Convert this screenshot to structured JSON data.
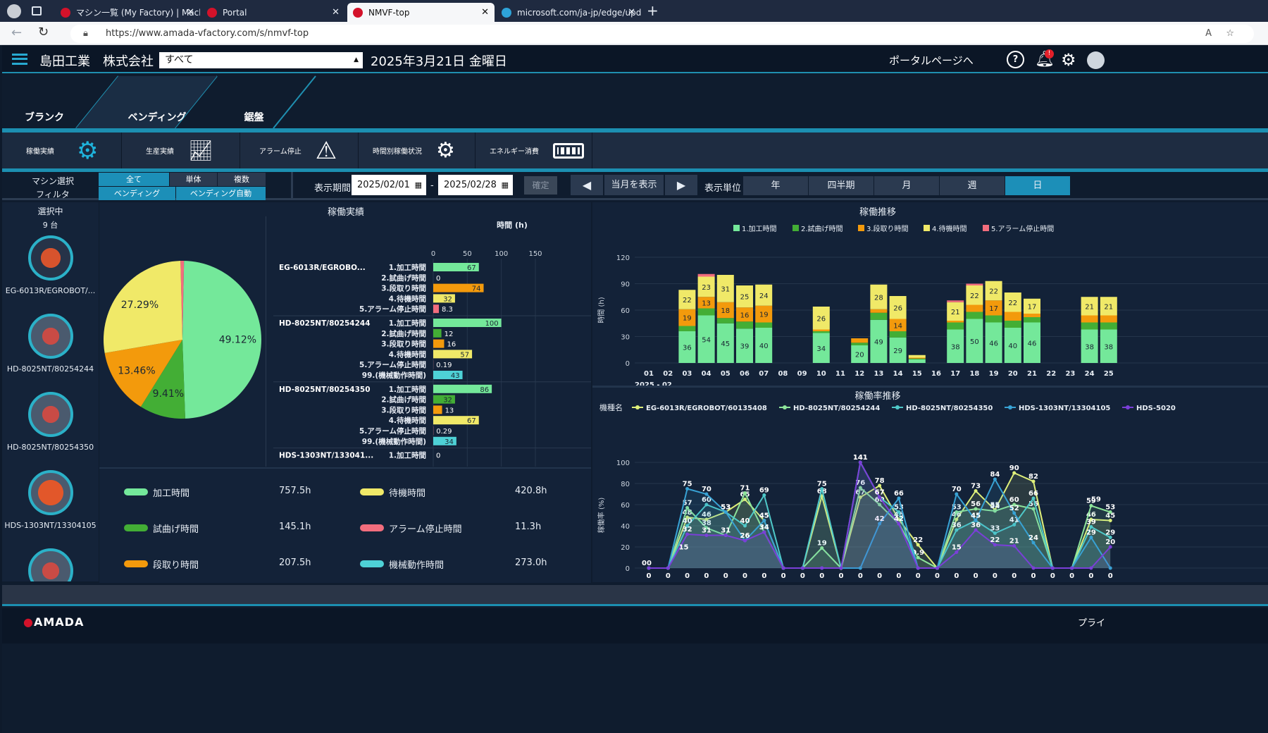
{
  "browser": {
    "tabs": [
      {
        "label": "マシン一覧 (My Factory) | Machine"
      },
      {
        "label": "Portal"
      },
      {
        "label": "NMVF-top"
      },
      {
        "label": "microsoft.com/ja-jp/edge/update"
      }
    ],
    "url": "https://www.amada-vfactory.com/s/nmvf-top"
  },
  "header": {
    "company": "島田工業　株式会社",
    "select_value": "すべて",
    "date": "2025年3月21日 金曜日",
    "portal_link": "ポータルページへ",
    "notification_badge": "!"
  },
  "categories": [
    "ブランク",
    "ベンディング",
    "鋸盤"
  ],
  "menus": [
    "稼働実績",
    "生産実績",
    "アラーム停止",
    "時間別稼働状況",
    "エネルギー消費"
  ],
  "filters": {
    "machine_label": "マシン選択",
    "filter_label": "フィルタ",
    "machine_opts": [
      "全て",
      "単体",
      "複数"
    ],
    "filter_opts": [
      "ベンディング",
      "ベンディング自動"
    ],
    "period_label": "表示期間",
    "start": "2025/02/01",
    "sep": "-",
    "end": "2025/02/28",
    "confirm": "確定",
    "current_month": "当月を表示",
    "unit_label": "表示単位",
    "units": [
      "年",
      "四半期",
      "月",
      "週",
      "日"
    ]
  },
  "sidebar": {
    "title": "選択中",
    "count": "9 台",
    "machines": [
      "EG-6013R/EGROBOT/...",
      "HD-8025NT/80254244",
      "HD-8025NT/80254350",
      "HDS-1303NT/13304105"
    ]
  },
  "panels": {
    "performance": "稼働実績",
    "trend": "稼働推移",
    "rate_trend": "稼働率推移"
  },
  "summary": [
    {
      "label": "加工時間",
      "value": "757.5h",
      "color": "#74e89a"
    },
    {
      "label": "待機時間",
      "value": "420.8h",
      "color": "#f0e968"
    },
    {
      "label": "試曲げ時間",
      "value": "145.1h",
      "color": "#43ae35"
    },
    {
      "label": "アラーム停止時間",
      "value": "11.3h",
      "color": "#f26d7d"
    },
    {
      "label": "段取り時間",
      "value": "207.5h",
      "color": "#f39a0c"
    },
    {
      "label": "機械動作時間",
      "value": "273.0h",
      "color": "#4ed1d6"
    }
  ],
  "footer": {
    "logo": "AMADA",
    "right": "プライ"
  },
  "chart_data": [
    {
      "type": "pie",
      "labels": [
        "1.加工時間",
        "2.試曲げ時間",
        "3.段取り時間",
        "4.待機時間",
        "5.アラーム停止時間"
      ],
      "values": [
        49.12,
        9.41,
        13.46,
        27.29,
        0.72
      ],
      "value_labels": [
        "49.12%",
        "9.41%",
        "13.46%",
        "27.29%",
        ""
      ],
      "colors": [
        "#74e89a",
        "#43ae35",
        "#f39a0c",
        "#f0e968",
        "#f26d7d"
      ]
    },
    {
      "type": "bar",
      "title": "時間 (h)",
      "xlim": [
        0,
        150
      ],
      "ticks": [
        "0",
        "50",
        "100",
        "150"
      ],
      "groups": [
        {
          "machine": "EG-6013R/EGROBO...",
          "rows": [
            {
              "label": "1.加工時間",
              "value": 67,
              "text": "67"
            },
            {
              "label": "2.試曲げ時間",
              "value": 0,
              "text": "0"
            },
            {
              "label": "3.段取り時間",
              "value": 74,
              "text": "74"
            },
            {
              "label": "4.待機時間",
              "value": 32,
              "text": "32"
            },
            {
              "label": "5.アラーム停止時間",
              "value": 8.3,
              "text": "8.3"
            }
          ]
        },
        {
          "machine": "HD-8025NT/80254244",
          "rows": [
            {
              "label": "1.加工時間",
              "value": 100,
              "text": "100"
            },
            {
              "label": "2.試曲げ時間",
              "value": 12,
              "text": "12"
            },
            {
              "label": "3.段取り時間",
              "value": 16,
              "text": "16"
            },
            {
              "label": "4.待機時間",
              "value": 57,
              "text": "57"
            },
            {
              "label": "5.アラーム停止時間",
              "value": 0.19,
              "text": "0.19"
            },
            {
              "label": "99.(機械動作時間)",
              "value": 43,
              "text": "43"
            }
          ]
        },
        {
          "machine": "HD-8025NT/80254350",
          "rows": [
            {
              "label": "1.加工時間",
              "value": 86,
              "text": "86"
            },
            {
              "label": "2.試曲げ時間",
              "value": 32,
              "text": "32"
            },
            {
              "label": "3.段取り時間",
              "value": 13,
              "text": "13"
            },
            {
              "label": "4.待機時間",
              "value": 67,
              "text": "67"
            },
            {
              "label": "5.アラーム停止時間",
              "value": 0.29,
              "text": "0.29"
            },
            {
              "label": "99.(機械動作時間)",
              "value": 34,
              "text": "34"
            }
          ]
        },
        {
          "machine": "HDS-1303NT/133041...",
          "rows": [
            {
              "label": "1.加工時間",
              "value": 0,
              "text": "0"
            }
          ]
        }
      ],
      "colors": {
        "1.加工時間": "#74e89a",
        "2.試曲げ時間": "#43ae35",
        "3.段取り時間": "#f39a0c",
        "4.待機時間": "#f0e968",
        "5.アラーム停止時間": "#f26d7d",
        "99.(機械動作時間)": "#4ed1d6"
      }
    },
    {
      "type": "bar",
      "stacked": true,
      "ylabel": "時間 (h)",
      "ylim": [
        0,
        120
      ],
      "yticks": [
        "0",
        "30",
        "60",
        "90",
        "120"
      ],
      "xlabel_sub": "2025 - 02",
      "categories": [
        "01",
        "02",
        "03",
        "04",
        "05",
        "06",
        "07",
        "08",
        "09",
        "10",
        "11",
        "12",
        "13",
        "14",
        "15",
        "16",
        "17",
        "18",
        "19",
        "20",
        "21",
        "22",
        "23",
        "24",
        "25"
      ],
      "legend": [
        "1.加工時間",
        "2.試曲げ時間",
        "3.段取り時間",
        "4.待機時間",
        "5.アラーム停止時間"
      ],
      "colors": [
        "#74e89a",
        "#43ae35",
        "#f39a0c",
        "#f0e968",
        "#f26d7d"
      ],
      "series": [
        {
          "name": "1.加工時間",
          "values": [
            0,
            0,
            36,
            54,
            45,
            39,
            40,
            0,
            0,
            34,
            0,
            20,
            49,
            29,
            4,
            0,
            38,
            50,
            46,
            40,
            46,
            0,
            0,
            38,
            38
          ]
        },
        {
          "name": "2.試曲げ時間",
          "values": [
            0,
            0,
            6,
            8,
            6,
            8,
            6,
            0,
            0,
            2,
            0,
            3,
            8,
            7,
            1,
            0,
            8,
            8,
            8,
            8,
            6,
            0,
            0,
            8,
            8
          ]
        },
        {
          "name": "3.段取り時間",
          "values": [
            0,
            0,
            19,
            13,
            18,
            16,
            19,
            0,
            0,
            2,
            0,
            5,
            4,
            14,
            1,
            0,
            2,
            8,
            17,
            10,
            4,
            0,
            0,
            8,
            8
          ]
        },
        {
          "name": "4.待機時間",
          "values": [
            0,
            0,
            22,
            23,
            31,
            25,
            24,
            0,
            0,
            26,
            0,
            0,
            28,
            26,
            3,
            0,
            21,
            22,
            22,
            22,
            17,
            0,
            0,
            21,
            21
          ]
        },
        {
          "name": "5.アラーム停止時間",
          "values": [
            0,
            0,
            0,
            3,
            0,
            0,
            0,
            0,
            0,
            0,
            0,
            0,
            0,
            0,
            0,
            0,
            2,
            2,
            0,
            0,
            0,
            0,
            0,
            0,
            0
          ]
        }
      ],
      "labels": {
        "1.加工時間": [
          null,
          null,
          "36",
          "54",
          "45",
          "39",
          "40",
          null,
          null,
          "34",
          null,
          "20",
          "49",
          "29",
          null,
          null,
          "38",
          "50",
          "46",
          "40",
          "46",
          null,
          null,
          "38",
          "38"
        ],
        "3.段取り時間": [
          null,
          null,
          "19",
          "13",
          "18",
          "16",
          "19",
          null,
          null,
          null,
          null,
          null,
          null,
          "14",
          null,
          null,
          null,
          null,
          "17",
          null,
          null,
          null,
          null,
          null,
          null
        ],
        "4.待機時間": [
          null,
          null,
          "22",
          "23",
          "31",
          "25",
          "24",
          null,
          null,
          "26",
          null,
          null,
          "28",
          "26",
          null,
          null,
          "21",
          "22",
          "22",
          "22",
          "17",
          null,
          null,
          "21",
          "21"
        ]
      }
    },
    {
      "type": "line",
      "ylabel": "稼働率 (%)",
      "ylim": [
        0,
        100
      ],
      "yticks": [
        "0",
        "20",
        "40",
        "60",
        "80",
        "100"
      ],
      "legend_title": "機種名",
      "xlabel_sub": "2025 - 02",
      "categories": [
        "01",
        "02",
        "03",
        "04",
        "05",
        "06",
        "07",
        "08",
        "09",
        "10",
        "11",
        "12",
        "13",
        "14",
        "15",
        "16",
        "17",
        "18",
        "19",
        "20",
        "21",
        "22",
        "23",
        "24",
        "25"
      ],
      "series": [
        {
          "name": "EG-6013R/EGROBOT/60135408",
          "color": "#dff07a",
          "values": [
            0,
            0,
            48,
            46,
            53,
            65,
            45,
            0,
            0,
            68,
            0,
            67,
            78,
            46,
            22,
            0,
            46,
            73,
            55,
            90,
            82,
            0,
            0,
            46,
            45
          ]
        },
        {
          "name": "HD-8025NT/80254244",
          "color": "#8ee59a",
          "values": [
            0,
            0,
            57,
            38,
            31,
            71,
            34,
            0,
            0,
            19,
            0,
            76,
            60,
            42,
            9.9,
            0,
            53,
            56,
            54,
            60,
            56,
            0,
            0,
            59,
            53
          ]
        },
        {
          "name": "HD-8025NT/80254350",
          "color": "#4fc9c9",
          "values": [
            0,
            0,
            40,
            60,
            53,
            40,
            69,
            0,
            0,
            75,
            0,
            141,
            67,
            53,
            0,
            0,
            36,
            45,
            33,
            41,
            66,
            0,
            0,
            39,
            29
          ]
        },
        {
          "name": "HDS-1303NT/13304105",
          "color": "#38a2d4",
          "values": [
            0,
            0,
            75,
            70,
            53,
            26,
            45,
            0,
            0,
            0,
            0,
            0,
            42,
            66,
            0,
            0,
            70,
            45,
            84,
            52,
            24,
            0,
            0,
            29,
            0
          ]
        },
        {
          "name": "HDS-5020",
          "color": "#7a3fd8",
          "values": [
            0,
            0,
            32,
            31,
            31,
            26,
            34,
            0,
            0,
            0,
            0,
            141,
            67,
            42,
            0,
            0,
            15,
            36,
            22,
            21,
            0,
            0,
            0,
            0,
            20
          ]
        }
      ],
      "extra_labels": [
        "00",
        "15",
        "59"
      ]
    }
  ]
}
